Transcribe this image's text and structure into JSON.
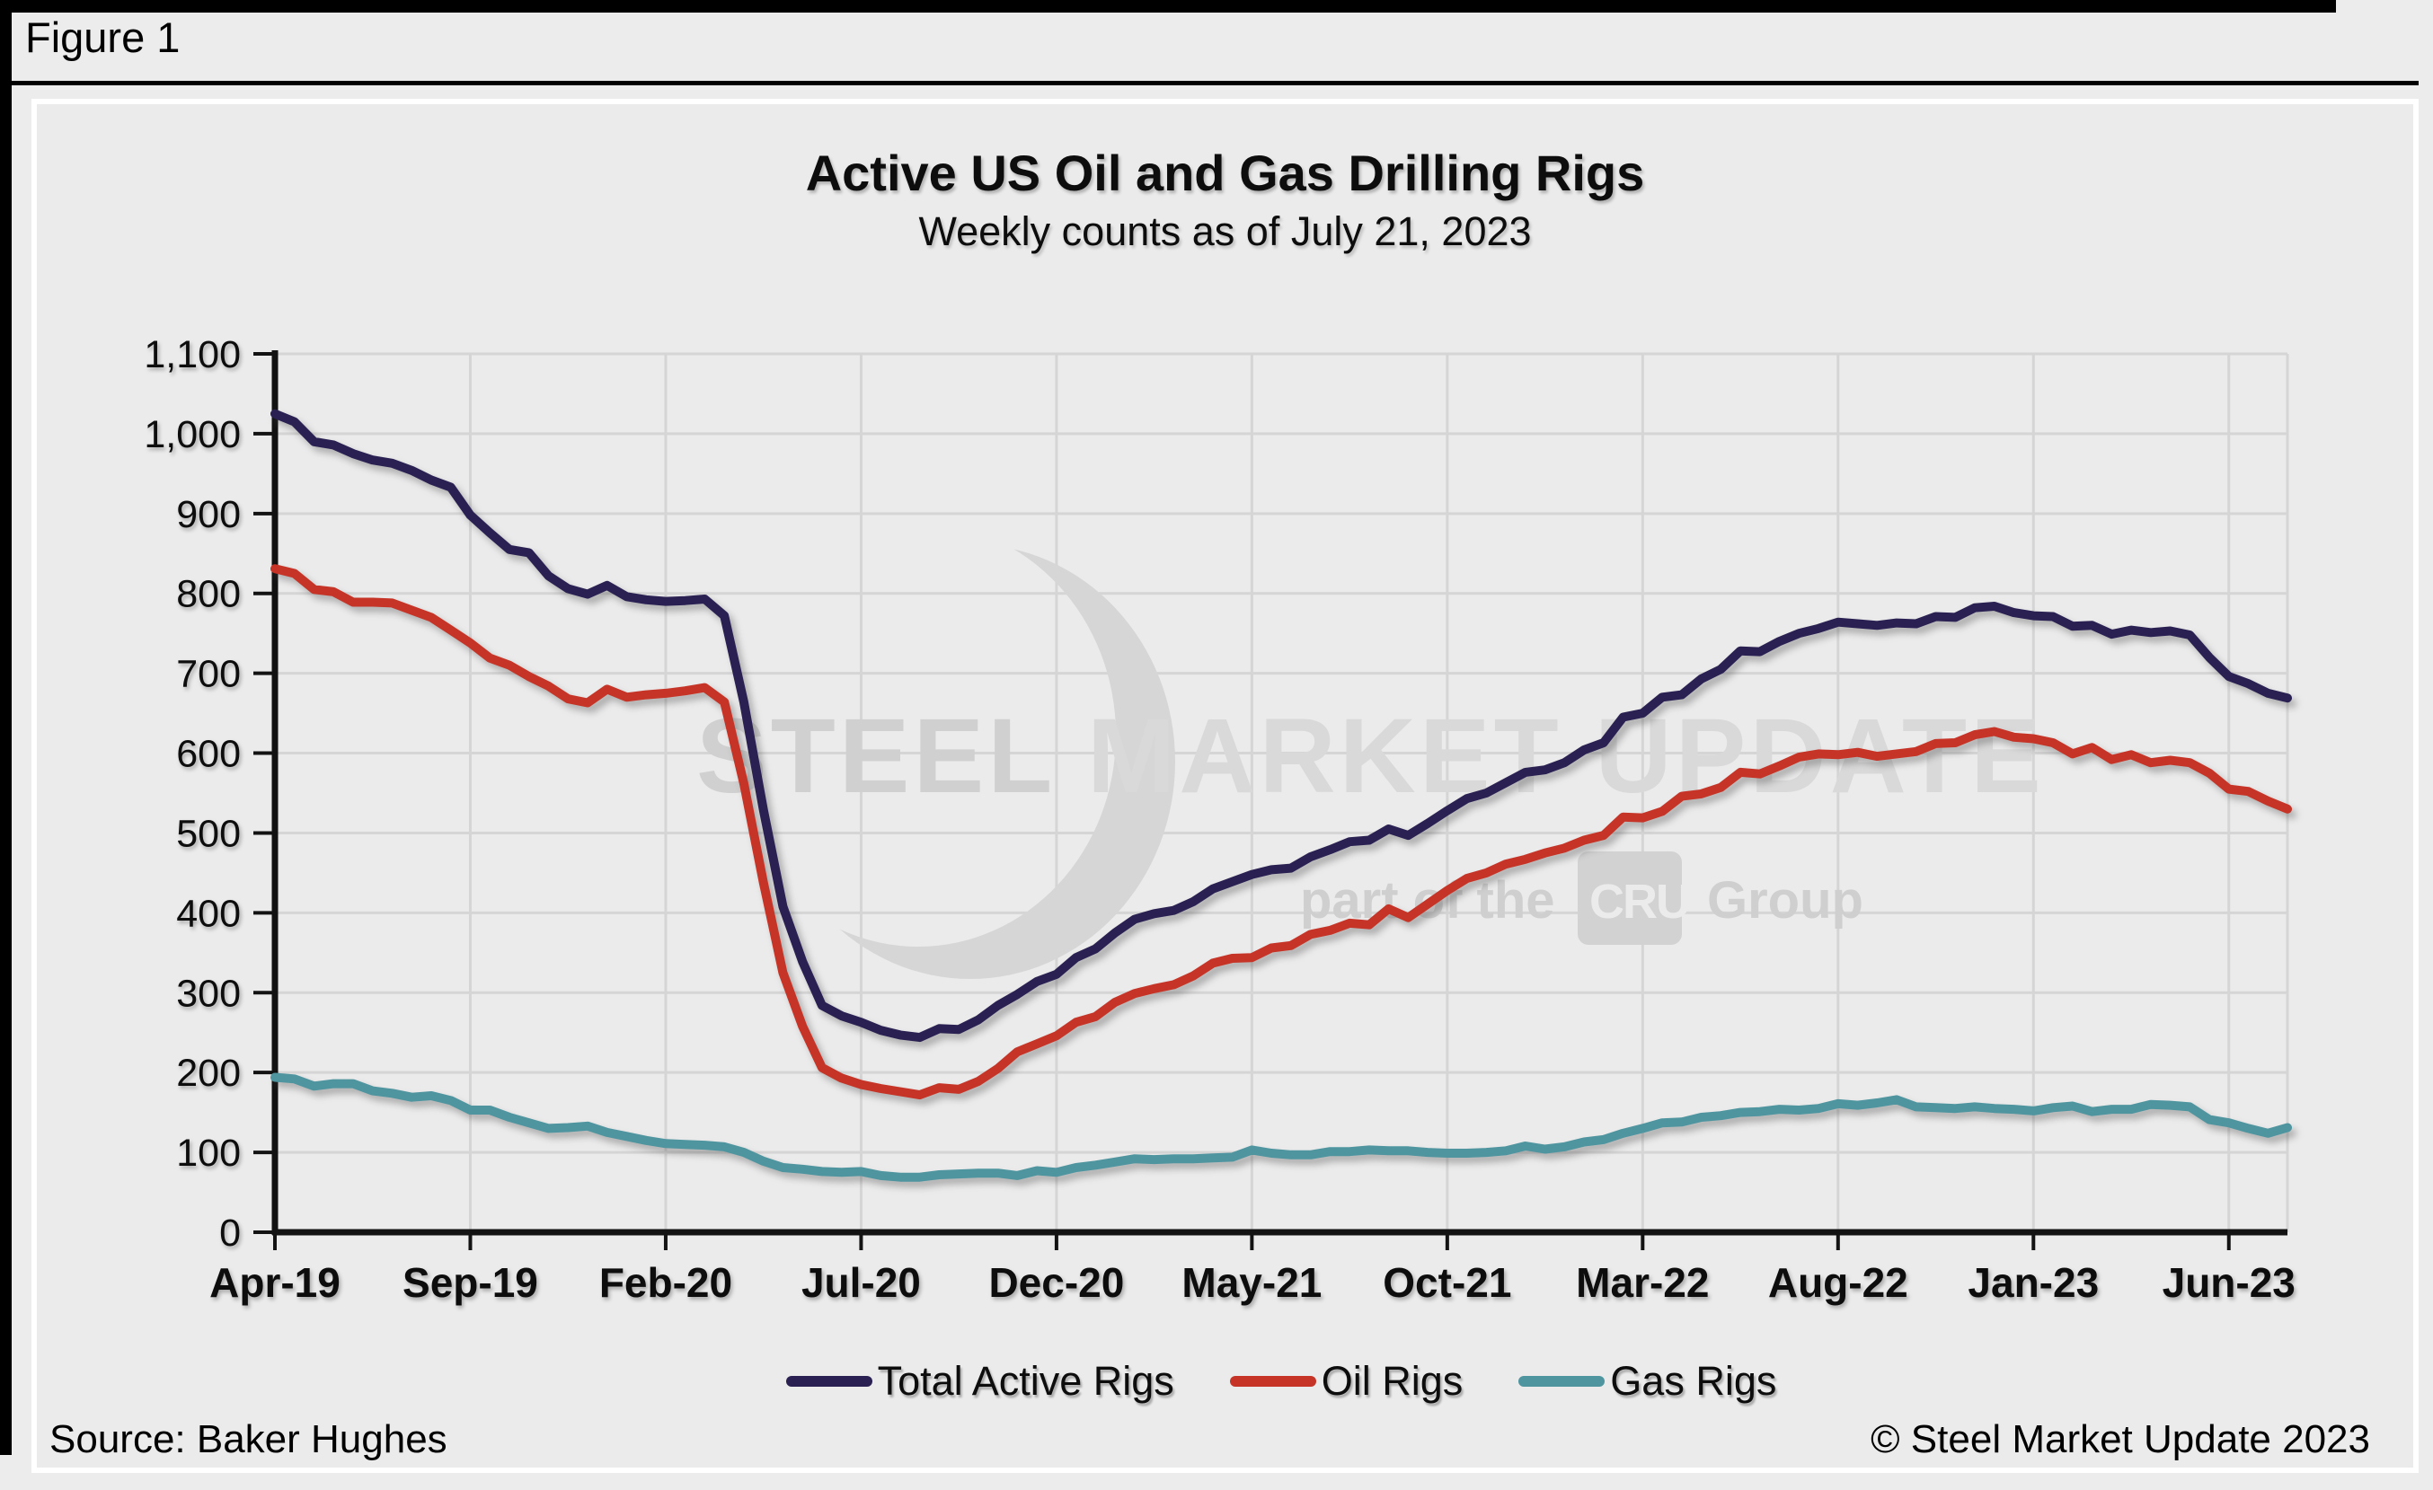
{
  "figure_label": "Figure 1",
  "title": "Active US Oil and Gas Drilling Rigs",
  "subtitle": "Weekly counts as of July 21, 2023",
  "source": "Source: Baker Hughes",
  "copyright": "© Steel Market Update 2023",
  "watermark": {
    "word1": "STEEL",
    "word2": " MARKET",
    "word3": " UPDATE",
    "tagline_prefix": "part of the",
    "tagline_box": "CRU",
    "tagline_suffix": "Group"
  },
  "colors": {
    "total": "#2a2152",
    "oil": "#c63427",
    "gas": "#4f95a0",
    "page_bg": "#ececec",
    "panel_bg": "#ebebeb",
    "gridline": "#d5d5d5",
    "axis": "#131313",
    "watermark": "#d6d6d6"
  },
  "chart_data": {
    "type": "line",
    "title": "Active US Oil and Gas Drilling Rigs",
    "subtitle": "Weekly counts as of July 21, 2023",
    "xlabel": "",
    "ylabel": "",
    "grid": true,
    "legend_position": "bottom",
    "x_unit": "months since Apr-2019 (weekly counts, ~half-month sampling)",
    "x_start_months": 0,
    "x_step_months": 0.5,
    "x_end_months": 51.5,
    "x_ticks": [
      {
        "m": 0,
        "label": "Apr-19"
      },
      {
        "m": 5,
        "label": "Sep-19"
      },
      {
        "m": 10,
        "label": "Feb-20"
      },
      {
        "m": 15,
        "label": "Jul-20"
      },
      {
        "m": 20,
        "label": "Dec-20"
      },
      {
        "m": 25,
        "label": "May-21"
      },
      {
        "m": 30,
        "label": "Oct-21"
      },
      {
        "m": 35,
        "label": "Mar-22"
      },
      {
        "m": 40,
        "label": "Aug-22"
      },
      {
        "m": 45,
        "label": "Jan-23"
      },
      {
        "m": 50,
        "label": "Jun-23"
      }
    ],
    "y_axis": {
      "min": 0,
      "max": 1100,
      "step": 100,
      "tick_labels": [
        "0",
        "100",
        "200",
        "300",
        "400",
        "500",
        "600",
        "700",
        "800",
        "900",
        "1,000",
        "1,100"
      ]
    },
    "series": [
      {
        "name": "Total Active Rigs",
        "color": "#2a2152",
        "values": [
          1025,
          1015,
          990,
          986,
          975,
          967,
          963,
          954,
          942,
          933,
          898,
          876,
          855,
          851,
          822,
          806,
          799,
          810,
          796,
          792,
          790,
          791,
          793,
          772,
          664,
          529,
          408,
          339,
          284,
          271,
          263,
          253,
          247,
          244,
          255,
          254,
          266,
          284,
          298,
          314,
          323,
          344,
          355,
          375,
          392,
          399,
          403,
          414,
          430,
          439,
          448,
          454,
          456,
          470,
          479,
          489,
          491,
          505,
          497,
          512,
          528,
          543,
          550,
          563,
          576,
          579,
          588,
          604,
          613,
          645,
          650,
          670,
          673,
          693,
          705,
          728,
          727,
          740,
          750,
          756,
          764,
          762,
          760,
          763,
          762,
          771,
          770,
          782,
          784,
          776,
          772,
          771,
          759,
          760,
          749,
          754,
          751,
          753,
          748,
          720,
          696,
          687,
          675,
          669
        ]
      },
      {
        "name": "Oil Rigs",
        "color": "#c63427",
        "values": [
          831,
          825,
          805,
          802,
          789,
          789,
          788,
          779,
          770,
          754,
          738,
          719,
          710,
          696,
          684,
          668,
          663,
          680,
          670,
          673,
          675,
          678,
          682,
          664,
          562,
          438,
          325,
          258,
          206,
          193,
          185,
          180,
          176,
          172,
          181,
          179,
          189,
          205,
          226,
          236,
          246,
          263,
          270,
          288,
          299,
          305,
          310,
          321,
          337,
          343,
          344,
          356,
          359,
          373,
          378,
          387,
          385,
          405,
          394,
          411,
          428,
          443,
          450,
          461,
          467,
          475,
          481,
          491,
          497,
          520,
          519,
          527,
          546,
          549,
          557,
          576,
          574,
          584,
          595,
          599,
          598,
          601,
          596,
          599,
          602,
          612,
          613,
          623,
          627,
          620,
          618,
          613,
          599,
          607,
          592,
          598,
          588,
          591,
          588,
          575,
          555,
          552,
          540,
          530
        ]
      },
      {
        "name": "Gas Rigs",
        "color": "#4f95a0",
        "values": [
          194,
          192,
          183,
          186,
          186,
          177,
          174,
          169,
          171,
          165,
          153,
          153,
          144,
          137,
          130,
          131,
          133,
          125,
          120,
          115,
          111,
          110,
          109,
          107,
          100,
          89,
          81,
          79,
          76,
          75,
          76,
          71,
          69,
          69,
          72,
          73,
          74,
          74,
          71,
          77,
          75,
          81,
          84,
          88,
          92,
          91,
          92,
          92,
          93,
          94,
          103,
          99,
          97,
          97,
          101,
          101,
          103,
          102,
          102,
          100,
          99,
          99,
          100,
          102,
          108,
          104,
          107,
          113,
          116,
          124,
          130,
          137,
          138,
          144,
          146,
          150,
          151,
          154,
          153,
          155,
          161,
          159,
          162,
          166,
          157,
          156,
          155,
          157,
          155,
          154,
          152,
          156,
          158,
          151,
          154,
          154,
          160,
          159,
          157,
          141,
          137,
          130,
          124,
          131
        ]
      }
    ]
  }
}
